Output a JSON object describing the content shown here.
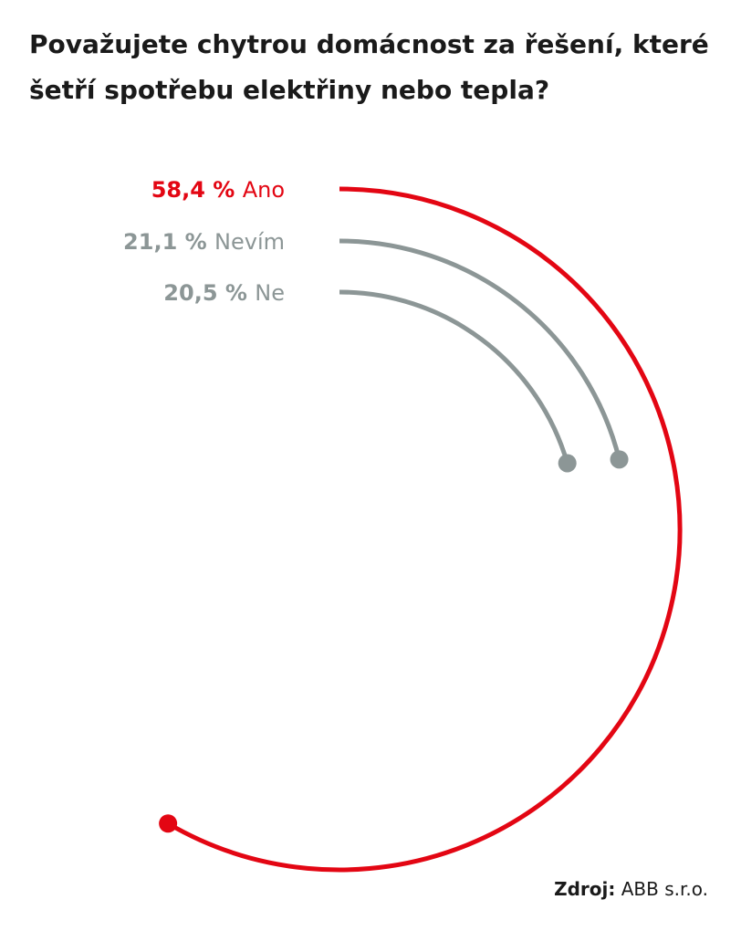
{
  "title": "Považujete chytrou domácnost za řešení, které šetří spotřebu elektřiny nebo tepla?",
  "source": {
    "label": "Zdroj:",
    "value": "ABB s.r.o."
  },
  "colors": {
    "accent": "#e30613",
    "muted": "#8c9696"
  },
  "chart_data": {
    "type": "radial-bar",
    "unit": "%",
    "series": [
      {
        "name": "Ano",
        "value": 58.4,
        "value_label": "58,4 %",
        "color": "#e30613"
      },
      {
        "name": "Nevím",
        "value": 21.1,
        "value_label": "21,1 %",
        "color": "#8c9696"
      },
      {
        "name": "Ne",
        "value": 20.5,
        "value_label": "20,5 %",
        "color": "#8c9696"
      }
    ]
  }
}
